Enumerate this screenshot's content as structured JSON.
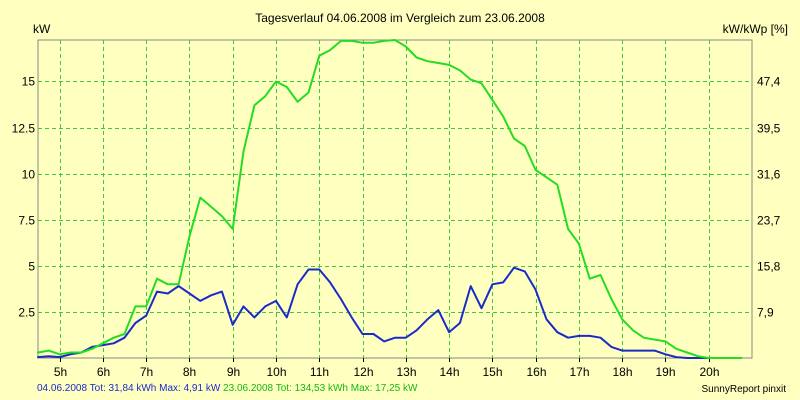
{
  "chart_data": {
    "type": "line",
    "title": "Tagesverlauf 04.06.2008 im Vergleich zum 23.06.2008",
    "ylabel_left": "kW",
    "ylabel_right": "kW/kWp [%]",
    "xlim": [
      4.5,
      21.0
    ],
    "ylim": [
      0,
      17.25
    ],
    "x_ticks": [
      5,
      6,
      7,
      8,
      9,
      10,
      11,
      12,
      13,
      14,
      15,
      16,
      17,
      18,
      19,
      20
    ],
    "x_tick_labels": [
      "5h",
      "6h",
      "7h",
      "8h",
      "9h",
      "10h",
      "11h",
      "12h",
      "13h",
      "14h",
      "15h",
      "16h",
      "17h",
      "18h",
      "19h",
      "20h"
    ],
    "y_ticks_left": [
      2.5,
      5,
      7.5,
      10,
      12.5,
      15
    ],
    "y_tick_labels_left": [
      "2.5",
      "5",
      "7.5",
      "10",
      "12.5",
      "15"
    ],
    "y_ticks_right": [
      2.5,
      5,
      7.5,
      10,
      12.5,
      15
    ],
    "y_tick_labels_right": [
      "7,9",
      "15,8",
      "23,7",
      "31,6",
      "39,5",
      "47,4"
    ],
    "grid": true,
    "series": [
      {
        "name": "04.06.2008",
        "color": "#1a2bc8",
        "x": [
          4.5,
          4.75,
          5.0,
          5.25,
          5.5,
          5.75,
          6.0,
          6.25,
          6.5,
          6.75,
          7.0,
          7.25,
          7.5,
          7.75,
          8.0,
          8.25,
          8.5,
          8.75,
          9.0,
          9.25,
          9.5,
          9.75,
          10.0,
          10.25,
          10.5,
          10.75,
          11.0,
          11.25,
          11.5,
          11.75,
          12.0,
          12.25,
          12.5,
          12.75,
          13.0,
          13.25,
          13.5,
          13.75,
          14.0,
          14.25,
          14.5,
          14.75,
          15.0,
          15.25,
          15.5,
          15.75,
          16.0,
          16.25,
          16.5,
          16.75,
          17.0,
          17.25,
          17.5,
          17.75,
          18.0,
          18.25,
          18.5,
          18.75,
          19.0,
          19.25,
          19.5,
          19.75,
          20.0,
          20.25,
          20.5,
          20.75
        ],
        "values": [
          0.05,
          0.1,
          0.05,
          0.2,
          0.3,
          0.6,
          0.7,
          0.8,
          1.1,
          1.9,
          2.3,
          3.6,
          3.5,
          3.9,
          3.5,
          3.1,
          3.4,
          3.6,
          1.8,
          2.8,
          2.2,
          2.8,
          3.1,
          2.2,
          4.0,
          4.8,
          4.8,
          4.1,
          3.2,
          2.2,
          1.3,
          1.3,
          0.9,
          1.1,
          1.1,
          1.5,
          2.1,
          2.6,
          1.4,
          1.9,
          3.9,
          2.7,
          4.0,
          4.1,
          4.9,
          4.7,
          3.7,
          2.1,
          1.4,
          1.1,
          1.2,
          1.2,
          1.1,
          0.6,
          0.4,
          0.4,
          0.4,
          0.4,
          0.2,
          0.05,
          0.0,
          0.0,
          0.0,
          0.0,
          0.0,
          0.0
        ]
      },
      {
        "name": "23.06.2008",
        "color": "#22dd22",
        "x": [
          4.5,
          4.75,
          5.0,
          5.25,
          5.5,
          5.75,
          6.0,
          6.25,
          6.5,
          6.75,
          7.0,
          7.25,
          7.5,
          7.75,
          8.0,
          8.25,
          8.5,
          8.75,
          9.0,
          9.25,
          9.5,
          9.75,
          10.0,
          10.25,
          10.5,
          10.75,
          11.0,
          11.25,
          11.5,
          11.75,
          12.0,
          12.25,
          12.5,
          12.75,
          13.0,
          13.25,
          13.5,
          13.75,
          14.0,
          14.25,
          14.5,
          14.75,
          15.0,
          15.25,
          15.5,
          15.75,
          16.0,
          16.25,
          16.5,
          16.75,
          17.0,
          17.25,
          17.5,
          17.75,
          18.0,
          18.25,
          18.5,
          18.75,
          19.0,
          19.25,
          19.5,
          19.75,
          20.0,
          20.25,
          20.5,
          20.75
        ],
        "values": [
          0.3,
          0.4,
          0.2,
          0.3,
          0.3,
          0.5,
          0.8,
          1.1,
          1.3,
          2.8,
          2.8,
          4.3,
          4.0,
          4.0,
          6.6,
          8.7,
          8.2,
          7.7,
          7.0,
          11.2,
          13.7,
          14.2,
          15.0,
          14.7,
          13.9,
          14.4,
          16.4,
          16.7,
          17.2,
          17.2,
          17.1,
          17.1,
          17.2,
          17.25,
          16.9,
          16.3,
          16.1,
          16.0,
          15.9,
          15.6,
          15.1,
          14.9,
          14.0,
          13.1,
          11.9,
          11.5,
          10.2,
          9.8,
          9.4,
          7.0,
          6.2,
          4.3,
          4.5,
          3.2,
          2.1,
          1.5,
          1.1,
          1.0,
          0.9,
          0.5,
          0.3,
          0.1,
          0.0,
          0.0,
          0.0,
          0.0
        ]
      }
    ]
  },
  "footer": {
    "series1_summary": "04.06.2008 Tot: 31,84 kWh Max: 4,91 kW",
    "series2_summary": "23.06.2008 Tot: 134,53 kWh Max: 17,25 kW",
    "credit": "SunnyReport pinxit"
  }
}
